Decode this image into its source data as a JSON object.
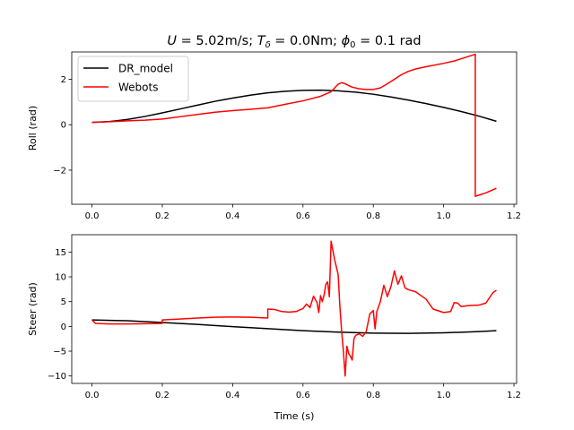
{
  "figure": {
    "title_parts": [
      {
        "text": "U",
        "style": "italic"
      },
      {
        "text": " =  5.02m/s; ",
        "style": "normal"
      },
      {
        "text": "T",
        "style": "italic"
      },
      {
        "text": "δ",
        "style": "italic-sub"
      },
      {
        "text": " =  0.0Nm; ",
        "style": "normal"
      },
      {
        "text": "ϕ",
        "style": "italic"
      },
      {
        "text": "0",
        "style": "sub"
      },
      {
        "text": " = 0.1 rad",
        "style": "normal"
      }
    ]
  },
  "colors": {
    "dr_model": "#000000",
    "webots": "#ff0000"
  },
  "legend": {
    "placement": "upper-left",
    "entries": [
      "DR_model",
      "Webots"
    ]
  },
  "chart_data": [
    {
      "type": "line",
      "id": "roll",
      "ylabel": "Roll (rad)",
      "xlabel": "",
      "xlim": [
        -0.0575,
        1.2075
      ],
      "ylim": [
        -3.5,
        3.2
      ],
      "xticks": [
        0.0,
        0.2,
        0.4,
        0.6,
        0.8,
        1.0,
        1.2
      ],
      "xtick_labels": [
        "0.0",
        "0.2",
        "0.4",
        "0.6",
        "0.8",
        "1.0",
        "1.2"
      ],
      "yticks": [
        -2,
        0,
        2
      ],
      "ytick_labels": [
        "−2",
        "0",
        "2"
      ],
      "series": [
        {
          "name": "DR_model",
          "color": "#000000",
          "points": [
            [
              0,
              0.1
            ],
            [
              0.05,
              0.14
            ],
            [
              0.1,
              0.23
            ],
            [
              0.15,
              0.36
            ],
            [
              0.2,
              0.52
            ],
            [
              0.25,
              0.69
            ],
            [
              0.3,
              0.86
            ],
            [
              0.35,
              1.03
            ],
            [
              0.4,
              1.17
            ],
            [
              0.45,
              1.3
            ],
            [
              0.5,
              1.4
            ],
            [
              0.55,
              1.47
            ],
            [
              0.6,
              1.51
            ],
            [
              0.65,
              1.52
            ],
            [
              0.7,
              1.49
            ],
            [
              0.75,
              1.43
            ],
            [
              0.8,
              1.34
            ],
            [
              0.85,
              1.22
            ],
            [
              0.9,
              1.08
            ],
            [
              0.95,
              0.93
            ],
            [
              1.0,
              0.76
            ],
            [
              1.05,
              0.58
            ],
            [
              1.1,
              0.38
            ],
            [
              1.15,
              0.15
            ]
          ]
        },
        {
          "name": "Webots",
          "color": "#ff0000",
          "points": [
            [
              0,
              0.1
            ],
            [
              0.05,
              0.13
            ],
            [
              0.1,
              0.17
            ],
            [
              0.15,
              0.2
            ],
            [
              0.2,
              0.25
            ],
            [
              0.25,
              0.35
            ],
            [
              0.3,
              0.45
            ],
            [
              0.35,
              0.55
            ],
            [
              0.4,
              0.62
            ],
            [
              0.45,
              0.68
            ],
            [
              0.5,
              0.74
            ],
            [
              0.55,
              0.9
            ],
            [
              0.6,
              1.05
            ],
            [
              0.65,
              1.25
            ],
            [
              0.68,
              1.45
            ],
            [
              0.7,
              1.78
            ],
            [
              0.71,
              1.85
            ],
            [
              0.72,
              1.8
            ],
            [
              0.74,
              1.65
            ],
            [
              0.76,
              1.58
            ],
            [
              0.78,
              1.55
            ],
            [
              0.8,
              1.55
            ],
            [
              0.82,
              1.62
            ],
            [
              0.84,
              1.8
            ],
            [
              0.86,
              2.0
            ],
            [
              0.88,
              2.2
            ],
            [
              0.9,
              2.35
            ],
            [
              0.92,
              2.45
            ],
            [
              0.95,
              2.55
            ],
            [
              1.0,
              2.7
            ],
            [
              1.03,
              2.8
            ],
            [
              1.06,
              2.95
            ],
            [
              1.09,
              3.1
            ],
            [
              1.09,
              -3.15
            ],
            [
              1.1,
              -3.1
            ],
            [
              1.12,
              -3.0
            ],
            [
              1.15,
              -2.8
            ]
          ]
        }
      ]
    },
    {
      "type": "line",
      "id": "steer",
      "ylabel": "Steer (rad)",
      "xlabel": "Time (s)",
      "xlim": [
        -0.0575,
        1.2075
      ],
      "ylim": [
        -11.5,
        18.5
      ],
      "xticks": [
        0.0,
        0.2,
        0.4,
        0.6,
        0.8,
        1.0,
        1.2
      ],
      "xtick_labels": [
        "0.0",
        "0.2",
        "0.4",
        "0.6",
        "0.8",
        "1.0",
        "1.2"
      ],
      "yticks": [
        -10,
        -5,
        0,
        5,
        10,
        15
      ],
      "ytick_labels": [
        "−10",
        "−5",
        "0",
        "5",
        "10",
        "15"
      ],
      "series": [
        {
          "name": "DR_model",
          "color": "#000000",
          "points": [
            [
              0,
              1.3
            ],
            [
              0.1,
              1.15
            ],
            [
              0.2,
              0.8
            ],
            [
              0.3,
              0.4
            ],
            [
              0.4,
              -0.05
            ],
            [
              0.5,
              -0.45
            ],
            [
              0.6,
              -0.85
            ],
            [
              0.7,
              -1.15
            ],
            [
              0.8,
              -1.35
            ],
            [
              0.9,
              -1.4
            ],
            [
              1.0,
              -1.3
            ],
            [
              1.1,
              -1.05
            ],
            [
              1.15,
              -0.85
            ]
          ]
        },
        {
          "name": "Webots",
          "color": "#ff0000",
          "points": [
            [
              0,
              1.3
            ],
            [
              0.01,
              0.6
            ],
            [
              0.05,
              0.5
            ],
            [
              0.1,
              0.5
            ],
            [
              0.15,
              0.55
            ],
            [
              0.2,
              0.6
            ],
            [
              0.2,
              1.3
            ],
            [
              0.25,
              1.5
            ],
            [
              0.3,
              1.7
            ],
            [
              0.35,
              1.85
            ],
            [
              0.4,
              1.9
            ],
            [
              0.45,
              1.85
            ],
            [
              0.5,
              1.7
            ],
            [
              0.5,
              3.5
            ],
            [
              0.52,
              3.4
            ],
            [
              0.54,
              3.0
            ],
            [
              0.56,
              2.9
            ],
            [
              0.58,
              3.0
            ],
            [
              0.6,
              3.6
            ],
            [
              0.61,
              4.5
            ],
            [
              0.62,
              3.8
            ],
            [
              0.63,
              6.1
            ],
            [
              0.64,
              4.8
            ],
            [
              0.645,
              2.8
            ],
            [
              0.65,
              6.2
            ],
            [
              0.655,
              5.0
            ],
            [
              0.66,
              6.3
            ],
            [
              0.665,
              8.5
            ],
            [
              0.67,
              9.0
            ],
            [
              0.675,
              6.0
            ],
            [
              0.68,
              17.2
            ],
            [
              0.69,
              13.5
            ],
            [
              0.7,
              10.5
            ],
            [
              0.705,
              4.0
            ],
            [
              0.71,
              -1.0
            ],
            [
              0.715,
              -5.0
            ],
            [
              0.72,
              -10.0
            ],
            [
              0.725,
              -4.0
            ],
            [
              0.73,
              -5.5
            ],
            [
              0.735,
              -6.0
            ],
            [
              0.74,
              -6.8
            ],
            [
              0.745,
              -2.5
            ],
            [
              0.75,
              -1.8
            ],
            [
              0.76,
              -1.5
            ],
            [
              0.77,
              -2.0
            ],
            [
              0.78,
              -1.0
            ],
            [
              0.79,
              2.5
            ],
            [
              0.8,
              3.2
            ],
            [
              0.805,
              -0.5
            ],
            [
              0.81,
              3.0
            ],
            [
              0.82,
              5.0
            ],
            [
              0.83,
              8.3
            ],
            [
              0.84,
              6.0
            ],
            [
              0.85,
              8.0
            ],
            [
              0.86,
              11.2
            ],
            [
              0.87,
              8.5
            ],
            [
              0.88,
              10.2
            ],
            [
              0.89,
              7.8
            ],
            [
              0.9,
              7.4
            ],
            [
              0.92,
              7.0
            ],
            [
              0.95,
              5.5
            ],
            [
              0.97,
              3.5
            ],
            [
              1.0,
              2.8
            ],
            [
              1.02,
              3.0
            ],
            [
              1.03,
              4.8
            ],
            [
              1.04,
              4.7
            ],
            [
              1.05,
              4.0
            ],
            [
              1.07,
              4.2
            ],
            [
              1.1,
              4.3
            ],
            [
              1.12,
              4.7
            ],
            [
              1.14,
              6.8
            ],
            [
              1.15,
              7.3
            ]
          ]
        }
      ]
    }
  ]
}
